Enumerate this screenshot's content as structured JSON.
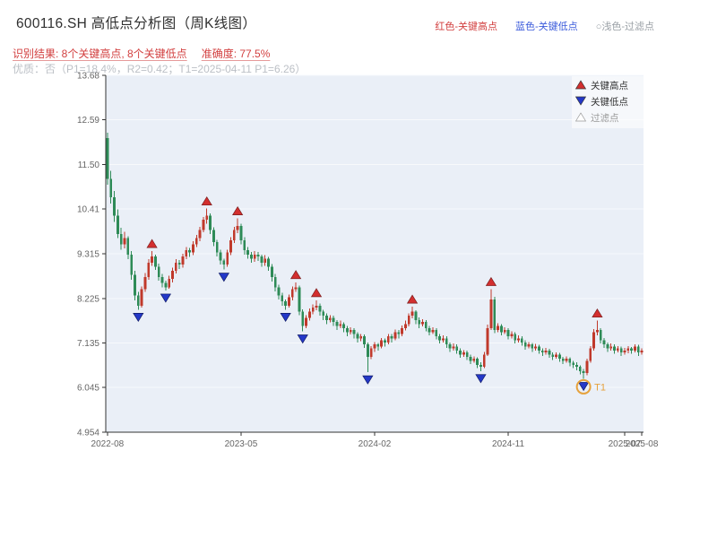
{
  "header": {
    "title": "600116.SH 高低点分析图（周K线图）",
    "legend_top": [
      {
        "label": "红色-关键高点",
        "color": "#d23f3f"
      },
      {
        "label": "蓝色-关键低点",
        "color": "#3b5bdb"
      },
      {
        "label": "○浅色-过滤点",
        "color": "#9aa0a6"
      }
    ]
  },
  "analysis": {
    "result_text": "识别结果: 8个关键高点, 8个关键低点",
    "accuracy_text": "准确度: 77.5%",
    "quality_text": "优质：否（P1=18.4%，R2=0.42；T1=2025-04-11 P1=6.26）"
  },
  "chart_data": {
    "type": "candlestick",
    "title": "600116.SH 高低点分析图（周K线图）",
    "frequency": "weekly",
    "y_ticks": [
      "13.68",
      "12.59",
      "11.50",
      "10.41",
      "9.315",
      "8.225",
      "7.135",
      "6.045",
      "4.954"
    ],
    "y_range": [
      4.954,
      13.68
    ],
    "x_ticks": [
      {
        "label": "2022-08",
        "week": 0
      },
      {
        "label": "2023-05",
        "week": 39
      },
      {
        "label": "2024-02",
        "week": 78
      },
      {
        "label": "2024-11",
        "week": 117
      },
      {
        "label": "2025-07",
        "week": 151
      },
      {
        "label": "2025-08",
        "week": 156
      }
    ],
    "grid": true,
    "legend_position": "top-right-inside",
    "legend": [
      {
        "label": "关键高点",
        "marker": "triangle-up",
        "color": "#d32f2f"
      },
      {
        "label": "关键低点",
        "marker": "triangle-down",
        "color": "#2438c8"
      },
      {
        "label": "过滤点",
        "marker": "triangle-up-outline",
        "color": "#aaaaaa"
      }
    ],
    "key_high_weeks": [
      13,
      29,
      38,
      55,
      61,
      89,
      112,
      143
    ],
    "key_low_weeks": [
      9,
      17,
      34,
      52,
      57,
      76,
      109,
      139
    ],
    "t1": {
      "week": 139,
      "label": "T1",
      "date": "2025-04-11",
      "price": 6.26
    },
    "colors": {
      "up": "#c0392b",
      "down": "#2e8b57",
      "bg": "#eaeff7",
      "grid": "#f7f9fc",
      "axis": "#333333",
      "tick_text": "#666666",
      "t1": "#e6a23c"
    },
    "candles": [
      [
        12.15,
        12.28,
        11.0,
        11.15
      ],
      [
        11.15,
        11.35,
        10.55,
        10.7
      ],
      [
        10.7,
        10.85,
        10.1,
        10.25
      ],
      [
        10.25,
        10.4,
        9.7,
        9.8
      ],
      [
        9.8,
        9.95,
        9.42,
        9.55
      ],
      [
        9.55,
        9.85,
        9.45,
        9.7
      ],
      [
        9.7,
        9.75,
        9.18,
        9.3
      ],
      [
        9.3,
        9.38,
        8.68,
        8.8
      ],
      [
        8.8,
        8.9,
        8.18,
        8.3
      ],
      [
        8.3,
        8.38,
        7.95,
        8.05
      ],
      [
        8.05,
        8.52,
        8.0,
        8.45
      ],
      [
        8.45,
        8.85,
        8.38,
        8.75
      ],
      [
        8.75,
        9.18,
        8.68,
        9.1
      ],
      [
        9.1,
        9.38,
        9.02,
        9.25
      ],
      [
        9.25,
        9.3,
        8.92,
        9.0
      ],
      [
        9.0,
        9.08,
        8.66,
        8.75
      ],
      [
        8.75,
        8.82,
        8.5,
        8.6
      ],
      [
        8.6,
        8.66,
        8.42,
        8.5
      ],
      [
        8.5,
        8.78,
        8.46,
        8.7
      ],
      [
        8.7,
        8.98,
        8.62,
        8.9
      ],
      [
        8.9,
        9.18,
        8.84,
        9.1
      ],
      [
        9.1,
        9.16,
        8.94,
        9.05
      ],
      [
        9.05,
        9.32,
        8.98,
        9.25
      ],
      [
        9.25,
        9.48,
        9.18,
        9.4
      ],
      [
        9.4,
        9.46,
        9.24,
        9.35
      ],
      [
        9.35,
        9.62,
        9.28,
        9.55
      ],
      [
        9.55,
        9.78,
        9.48,
        9.7
      ],
      [
        9.7,
        9.98,
        9.62,
        9.9
      ],
      [
        9.9,
        10.22,
        9.84,
        10.15
      ],
      [
        10.15,
        10.42,
        10.05,
        10.25
      ],
      [
        10.25,
        10.3,
        9.8,
        9.9
      ],
      [
        9.9,
        9.96,
        9.5,
        9.6
      ],
      [
        9.6,
        9.66,
        9.25,
        9.35
      ],
      [
        9.35,
        9.42,
        9.05,
        9.15
      ],
      [
        9.15,
        9.2,
        8.93,
        9.05
      ],
      [
        9.05,
        9.42,
        9.0,
        9.35
      ],
      [
        9.35,
        9.72,
        9.28,
        9.65
      ],
      [
        9.65,
        9.98,
        9.58,
        9.9
      ],
      [
        9.9,
        10.18,
        9.82,
        10.0
      ],
      [
        10.0,
        10.05,
        9.55,
        9.65
      ],
      [
        9.65,
        9.72,
        9.3,
        9.4
      ],
      [
        9.4,
        9.48,
        9.2,
        9.3
      ],
      [
        9.3,
        9.36,
        9.1,
        9.2
      ],
      [
        9.2,
        9.38,
        9.12,
        9.3
      ],
      [
        9.3,
        9.36,
        9.14,
        9.25
      ],
      [
        9.25,
        9.3,
        9.0,
        9.1
      ],
      [
        9.1,
        9.28,
        9.02,
        9.2
      ],
      [
        9.2,
        9.24,
        8.9,
        9.0
      ],
      [
        9.0,
        9.06,
        8.64,
        8.75
      ],
      [
        8.75,
        8.82,
        8.4,
        8.5
      ],
      [
        8.5,
        8.56,
        8.2,
        8.3
      ],
      [
        8.3,
        8.36,
        8.05,
        8.15
      ],
      [
        8.15,
        8.2,
        7.95,
        8.05
      ],
      [
        8.05,
        8.32,
        8.0,
        8.25
      ],
      [
        8.25,
        8.52,
        8.18,
        8.45
      ],
      [
        8.45,
        8.62,
        8.38,
        8.5
      ],
      [
        8.5,
        8.54,
        7.82,
        7.9
      ],
      [
        7.9,
        7.96,
        7.42,
        7.55
      ],
      [
        7.55,
        7.82,
        7.5,
        7.75
      ],
      [
        7.75,
        7.98,
        7.68,
        7.9
      ],
      [
        7.9,
        8.08,
        7.84,
        8.0
      ],
      [
        8.0,
        8.18,
        7.94,
        8.05
      ],
      [
        8.05,
        8.1,
        7.8,
        7.9
      ],
      [
        7.9,
        7.95,
        7.7,
        7.8
      ],
      [
        7.8,
        7.86,
        7.6,
        7.7
      ],
      [
        7.7,
        7.82,
        7.64,
        7.75
      ],
      [
        7.75,
        7.8,
        7.55,
        7.65
      ],
      [
        7.65,
        7.7,
        7.45,
        7.55
      ],
      [
        7.55,
        7.68,
        7.5,
        7.6
      ],
      [
        7.6,
        7.64,
        7.4,
        7.5
      ],
      [
        7.5,
        7.55,
        7.3,
        7.4
      ],
      [
        7.4,
        7.52,
        7.34,
        7.45
      ],
      [
        7.45,
        7.5,
        7.25,
        7.35
      ],
      [
        7.35,
        7.4,
        7.15,
        7.25
      ],
      [
        7.25,
        7.36,
        7.18,
        7.3
      ],
      [
        7.3,
        7.34,
        7.02,
        7.1
      ],
      [
        7.1,
        7.15,
        6.42,
        6.8
      ],
      [
        6.8,
        7.06,
        6.74,
        7.0
      ],
      [
        7.0,
        7.16,
        6.92,
        7.1
      ],
      [
        7.1,
        7.14,
        6.95,
        7.05
      ],
      [
        7.05,
        7.26,
        7.0,
        7.2
      ],
      [
        7.2,
        7.25,
        7.05,
        7.15
      ],
      [
        7.15,
        7.36,
        7.1,
        7.3
      ],
      [
        7.3,
        7.35,
        7.15,
        7.25
      ],
      [
        7.25,
        7.46,
        7.2,
        7.4
      ],
      [
        7.4,
        7.45,
        7.25,
        7.35
      ],
      [
        7.35,
        7.56,
        7.3,
        7.5
      ],
      [
        7.5,
        7.68,
        7.44,
        7.6
      ],
      [
        7.6,
        7.86,
        7.54,
        7.8
      ],
      [
        7.8,
        8.02,
        7.74,
        7.9
      ],
      [
        7.9,
        7.94,
        7.6,
        7.7
      ],
      [
        7.7,
        7.76,
        7.5,
        7.6
      ],
      [
        7.6,
        7.72,
        7.54,
        7.65
      ],
      [
        7.65,
        7.7,
        7.42,
        7.5
      ],
      [
        7.5,
        7.55,
        7.32,
        7.4
      ],
      [
        7.4,
        7.52,
        7.35,
        7.45
      ],
      [
        7.45,
        7.5,
        7.22,
        7.3
      ],
      [
        7.3,
        7.36,
        7.12,
        7.2
      ],
      [
        7.2,
        7.32,
        7.15,
        7.25
      ],
      [
        7.25,
        7.3,
        7.02,
        7.1
      ],
      [
        7.1,
        7.15,
        6.92,
        7.0
      ],
      [
        7.0,
        7.12,
        6.95,
        7.05
      ],
      [
        7.05,
        7.1,
        6.87,
        6.95
      ],
      [
        6.95,
        7.0,
        6.77,
        6.85
      ],
      [
        6.85,
        6.96,
        6.8,
        6.9
      ],
      [
        6.9,
        6.95,
        6.72,
        6.8
      ],
      [
        6.8,
        6.85,
        6.62,
        6.7
      ],
      [
        6.7,
        6.81,
        6.65,
        6.75
      ],
      [
        6.75,
        6.79,
        6.52,
        6.6
      ],
      [
        6.6,
        6.66,
        6.45,
        6.55
      ],
      [
        6.55,
        6.92,
        6.52,
        6.85
      ],
      [
        6.85,
        7.58,
        6.82,
        7.5
      ],
      [
        7.5,
        8.45,
        7.45,
        8.2
      ],
      [
        8.2,
        8.26,
        7.38,
        7.45
      ],
      [
        7.45,
        7.62,
        7.4,
        7.55
      ],
      [
        7.55,
        7.6,
        7.32,
        7.4
      ],
      [
        7.4,
        7.52,
        7.35,
        7.45
      ],
      [
        7.45,
        7.5,
        7.22,
        7.3
      ],
      [
        7.3,
        7.42,
        7.25,
        7.35
      ],
      [
        7.35,
        7.4,
        7.12,
        7.2
      ],
      [
        7.2,
        7.32,
        7.15,
        7.25
      ],
      [
        7.25,
        7.3,
        7.07,
        7.15
      ],
      [
        7.15,
        7.2,
        6.97,
        7.05
      ],
      [
        7.05,
        7.16,
        7.0,
        7.1
      ],
      [
        7.1,
        7.14,
        6.92,
        7.0
      ],
      [
        7.0,
        7.11,
        6.95,
        7.05
      ],
      [
        7.05,
        7.09,
        6.87,
        6.95
      ],
      [
        6.95,
        7.0,
        6.82,
        6.9
      ],
      [
        6.9,
        7.01,
        6.85,
        6.95
      ],
      [
        6.95,
        6.99,
        6.77,
        6.85
      ],
      [
        6.85,
        6.9,
        6.72,
        6.8
      ],
      [
        6.8,
        6.91,
        6.75,
        6.85
      ],
      [
        6.85,
        6.89,
        6.67,
        6.75
      ],
      [
        6.75,
        6.8,
        6.62,
        6.7
      ],
      [
        6.7,
        6.81,
        6.65,
        6.75
      ],
      [
        6.75,
        6.79,
        6.57,
        6.65
      ],
      [
        6.65,
        6.7,
        6.52,
        6.6
      ],
      [
        6.6,
        6.66,
        6.47,
        6.55
      ],
      [
        6.55,
        6.59,
        6.37,
        6.45
      ],
      [
        6.45,
        6.5,
        6.26,
        6.4
      ],
      [
        6.4,
        6.75,
        6.35,
        6.7
      ],
      [
        6.7,
        7.06,
        6.65,
        7.0
      ],
      [
        7.0,
        7.48,
        6.95,
        7.4
      ],
      [
        7.4,
        7.68,
        7.32,
        7.45
      ],
      [
        7.45,
        7.5,
        7.12,
        7.2
      ],
      [
        7.2,
        7.26,
        7.02,
        7.1
      ],
      [
        7.1,
        7.15,
        6.92,
        7.0
      ],
      [
        7.0,
        7.12,
        6.95,
        7.05
      ],
      [
        7.05,
        7.1,
        6.87,
        6.95
      ],
      [
        6.95,
        7.06,
        6.9,
        7.0
      ],
      [
        7.0,
        7.05,
        6.82,
        6.9
      ],
      [
        6.9,
        7.01,
        6.85,
        6.95
      ],
      [
        6.95,
        7.06,
        6.88,
        7.0
      ],
      [
        7.0,
        7.04,
        6.87,
        6.95
      ],
      [
        6.95,
        7.1,
        6.9,
        7.05
      ],
      [
        7.05,
        7.09,
        6.82,
        6.9
      ],
      [
        6.9,
        7.0,
        6.85,
        6.95
      ]
    ]
  }
}
